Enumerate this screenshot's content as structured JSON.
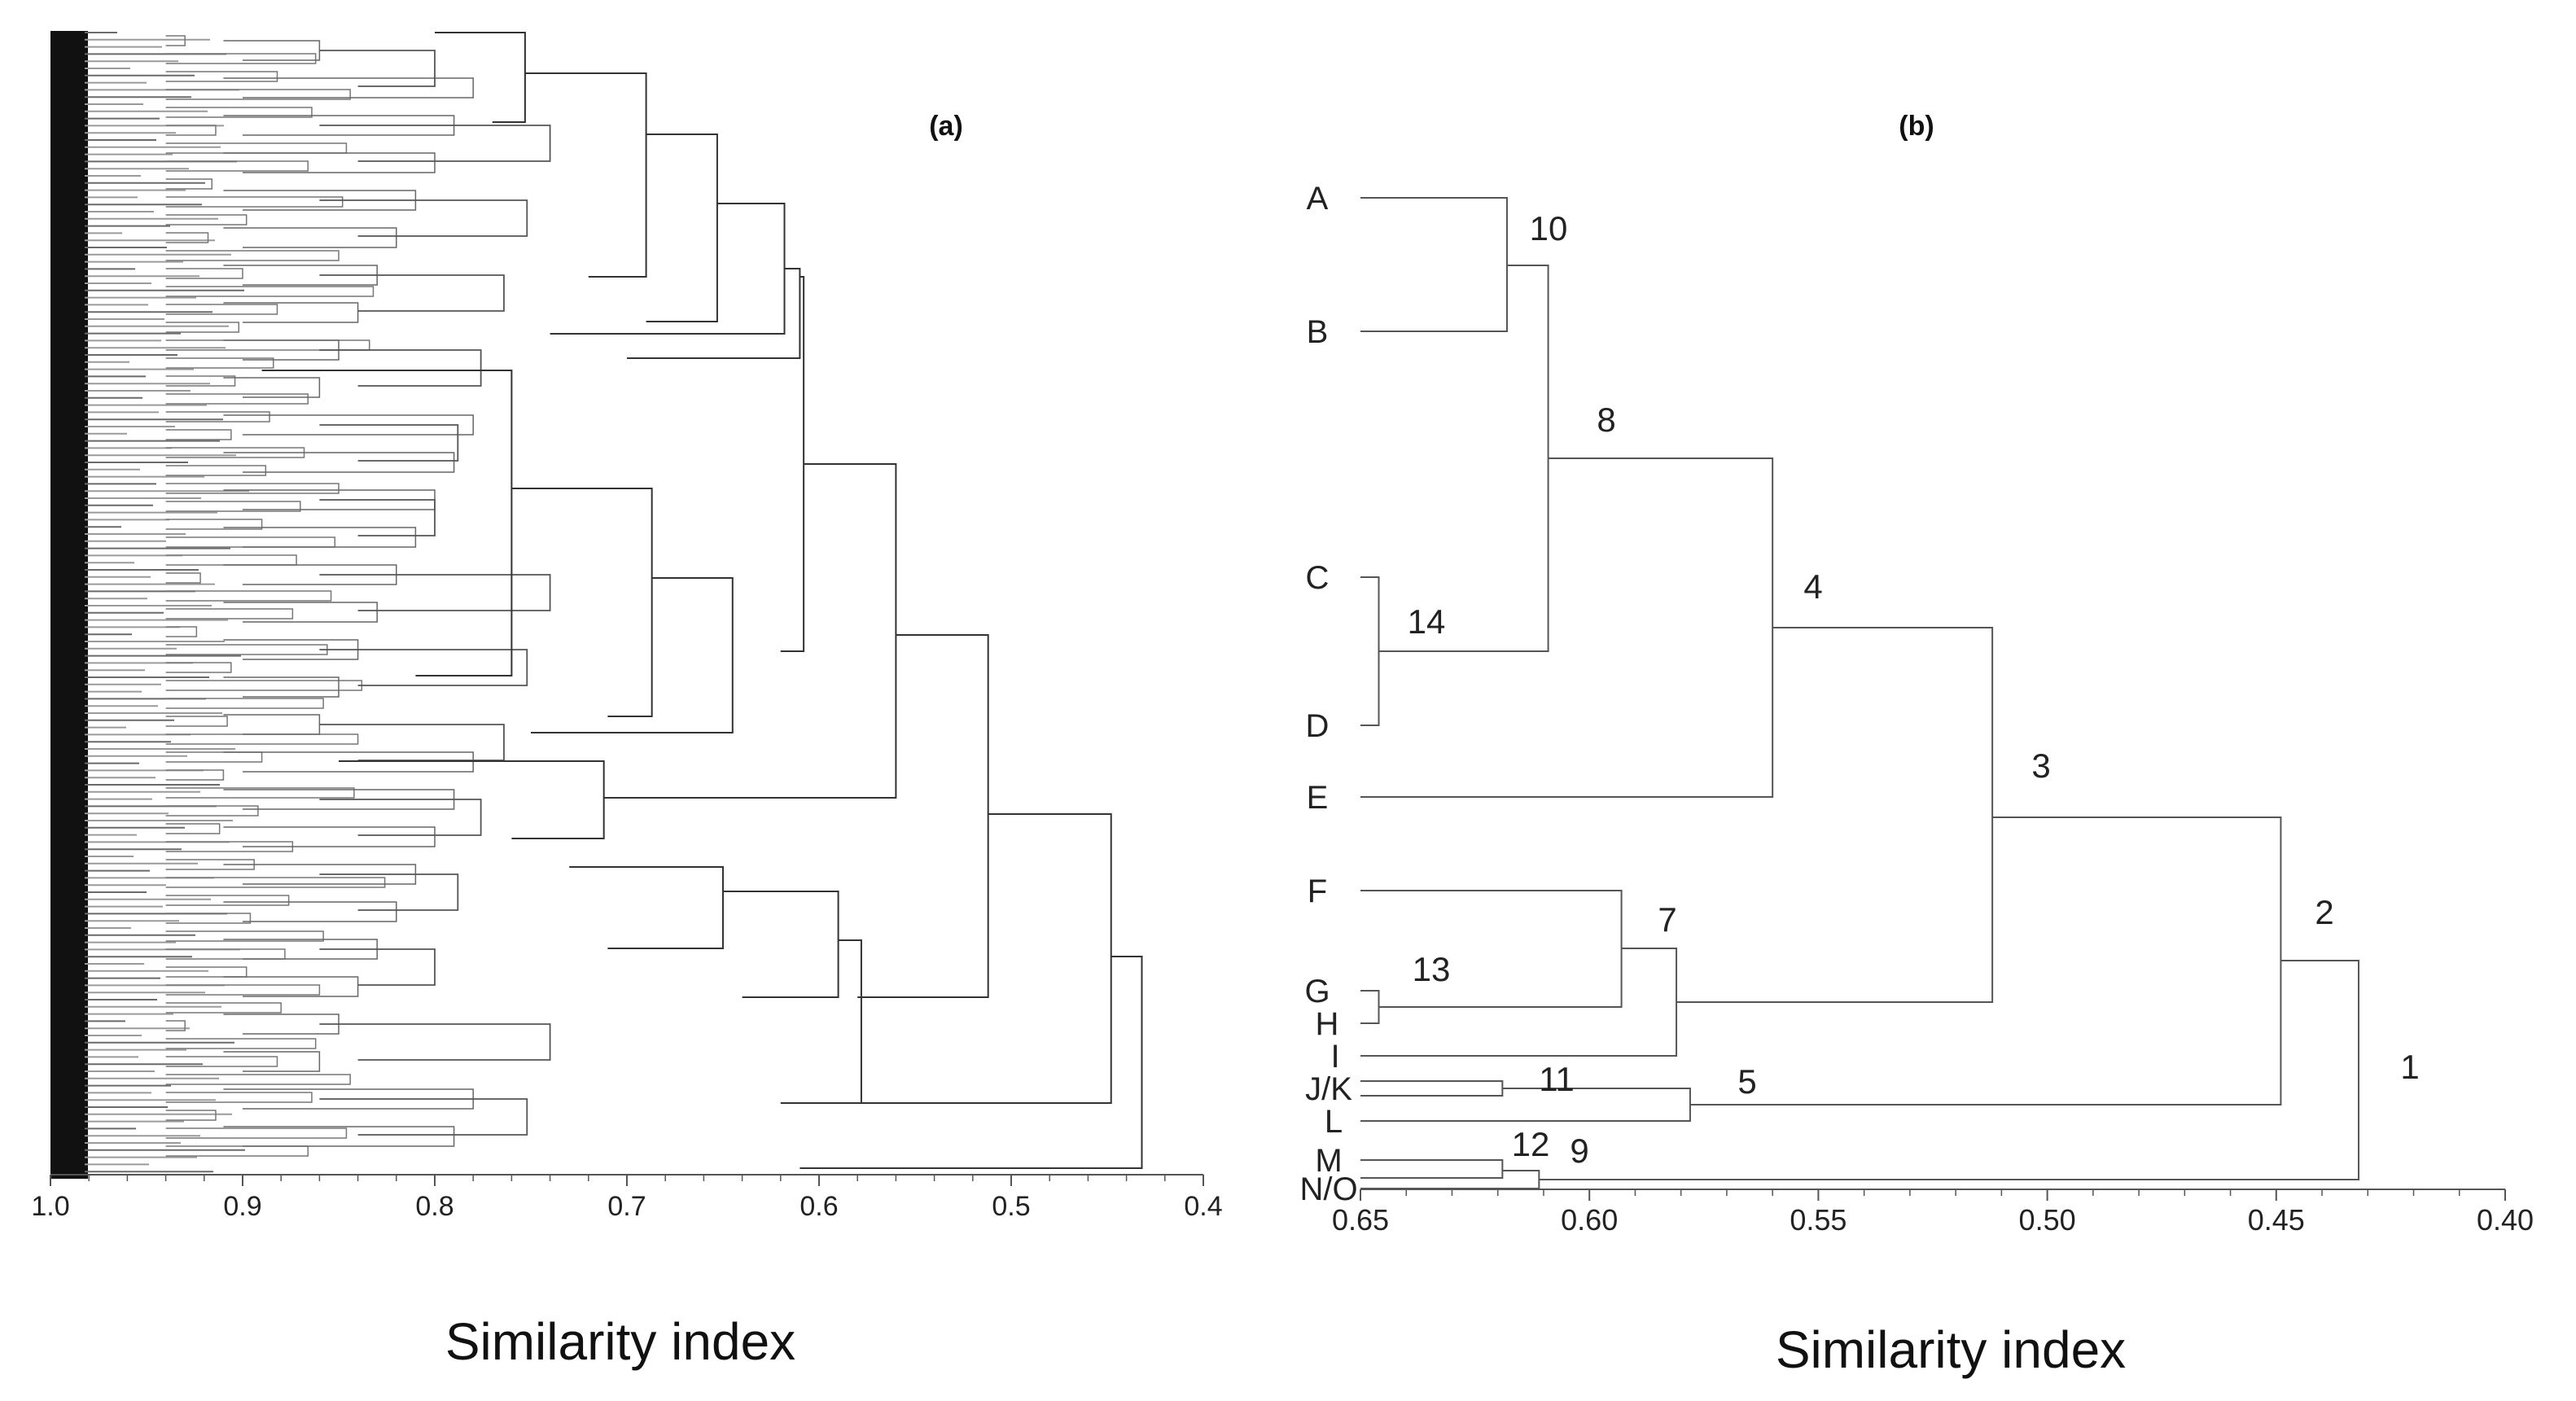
{
  "chart_data": [
    {
      "type": "dendrogram",
      "panel_label": "(a)",
      "xlabel": "Similarity index",
      "xlim": [
        1.0,
        0.4
      ],
      "xticks": [
        {
          "value": 1.0,
          "label": "1.0"
        },
        {
          "value": 0.9,
          "label": "0.9"
        },
        {
          "value": 0.8,
          "label": "0.8"
        },
        {
          "value": 0.7,
          "label": "0.7"
        },
        {
          "value": 0.6,
          "label": "0.6"
        },
        {
          "value": 0.5,
          "label": "0.5"
        },
        {
          "value": 0.4,
          "label": "0.4"
        }
      ],
      "major_merge_similarities": [
        0.753,
        0.69,
        0.653,
        0.618,
        0.61,
        0.608,
        0.76,
        0.687,
        0.645,
        0.712,
        0.56,
        0.512,
        0.65,
        0.59,
        0.578,
        0.448,
        0.432
      ]
    },
    {
      "type": "dendrogram",
      "panel_label": "(b)",
      "xlabel": "Similarity index",
      "xlim": [
        0.65,
        0.4
      ],
      "xticks": [
        {
          "value": 0.65,
          "label": "0.65"
        },
        {
          "value": 0.6,
          "label": "0.60"
        },
        {
          "value": 0.55,
          "label": "0.55"
        },
        {
          "value": 0.5,
          "label": "0.50"
        },
        {
          "value": 0.45,
          "label": "0.45"
        },
        {
          "value": 0.4,
          "label": "0.40"
        }
      ],
      "leaves": [
        "A",
        "B",
        "C",
        "D",
        "E",
        "F",
        "G",
        "H",
        "I",
        "J/K",
        "L",
        "M",
        "N/O"
      ],
      "nodes": [
        {
          "id": "1",
          "similarity": 0.432,
          "children": [
            "2",
            "9"
          ]
        },
        {
          "id": "2",
          "similarity": 0.449,
          "children": [
            "3",
            "5"
          ]
        },
        {
          "id": "3",
          "similarity": 0.512,
          "children": [
            "4",
            "7"
          ]
        },
        {
          "id": "4",
          "similarity": 0.56,
          "children": [
            "8",
            "E"
          ]
        },
        {
          "id": "8",
          "similarity": 0.609,
          "children": [
            "10",
            "14"
          ]
        },
        {
          "id": "10",
          "similarity": 0.618,
          "children": [
            "A",
            "B"
          ]
        },
        {
          "id": "14",
          "similarity": 0.646,
          "children": [
            "C",
            "D"
          ]
        },
        {
          "id": "7",
          "similarity": 0.581,
          "children": [
            "7a",
            "I"
          ]
        },
        {
          "id": "7a",
          "similarity": 0.593,
          "children": [
            "F",
            "13"
          ]
        },
        {
          "id": "13",
          "similarity": 0.646,
          "children": [
            "G",
            "H"
          ]
        },
        {
          "id": "5",
          "similarity": 0.578,
          "children": [
            "11",
            "L"
          ]
        },
        {
          "id": "11",
          "similarity": 0.619,
          "children": [
            "J/K",
            "J/K"
          ]
        },
        {
          "id": "9",
          "similarity": 0.611,
          "children": [
            "12",
            "N/O"
          ]
        },
        {
          "id": "12",
          "similarity": 0.619,
          "children": [
            "M",
            "N/O"
          ]
        }
      ]
    }
  ]
}
